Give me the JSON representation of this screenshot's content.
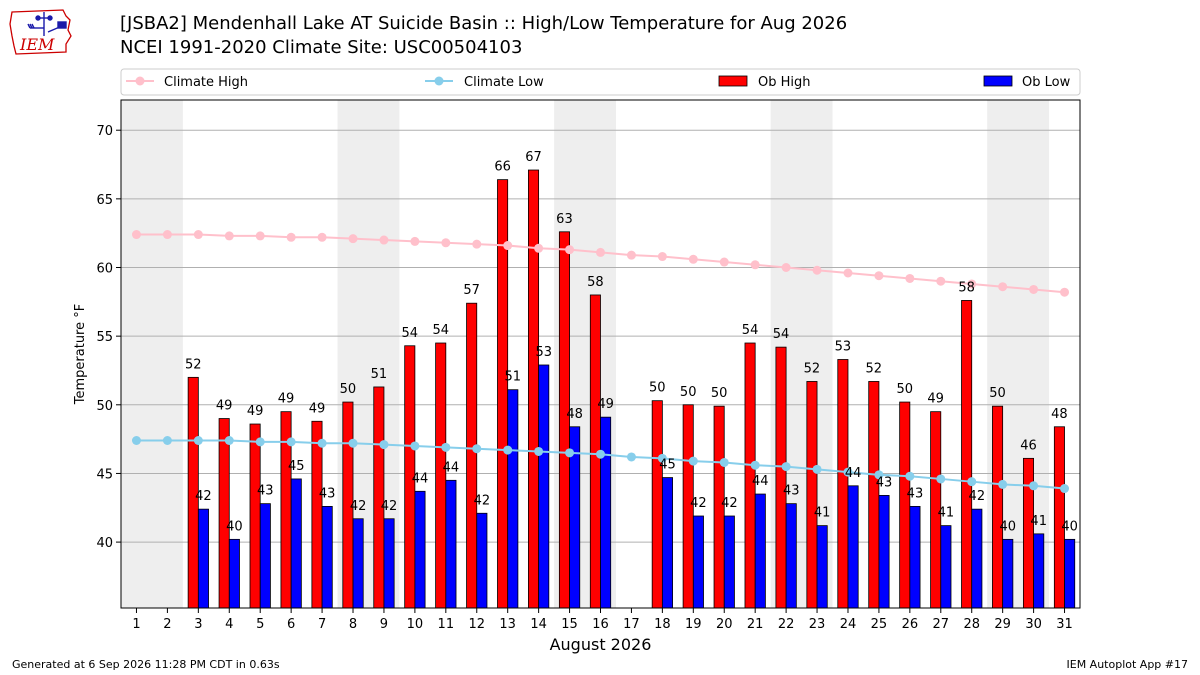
{
  "header": {
    "title": "[JSBA2] Mendenhall Lake  AT Suicide Basin :: High/Low Temperature for Aug 2026",
    "subtitle": "NCEI 1991-2020 Climate Site: USC00504103",
    "logo_text": "IEM"
  },
  "footer": {
    "left": "Generated at 6 Sep 2026 11:28 PM CDT in 0.63s",
    "right": "IEM Autoplot App #17"
  },
  "colors": {
    "climate_high": "#ffc0cb",
    "climate_low": "#87ceeb",
    "ob_high": "#ff0000",
    "ob_low": "#0000ff",
    "weekend_band": "#eeeeee",
    "grid": "#b0b0b0",
    "logo": "#cc0000"
  },
  "chart_data": {
    "type": "bar",
    "xlabel": "August 2026",
    "ylabel": "Temperature °F",
    "ylim": [
      35.2,
      72.2
    ],
    "xlim": [
      0.5,
      31.5
    ],
    "yticks": [
      40,
      45,
      50,
      55,
      60,
      65,
      70
    ],
    "x": [
      1,
      2,
      3,
      4,
      5,
      6,
      7,
      8,
      9,
      10,
      11,
      12,
      13,
      14,
      15,
      16,
      17,
      18,
      19,
      20,
      21,
      22,
      23,
      24,
      25,
      26,
      27,
      28,
      29,
      30,
      31
    ],
    "weekend_bands": [
      [
        0.5,
        2.5
      ],
      [
        7.5,
        9.5
      ],
      [
        14.5,
        16.5
      ],
      [
        21.5,
        23.5
      ],
      [
        28.5,
        30.5
      ]
    ],
    "legend_position": "top",
    "grid": "horizontal",
    "series": [
      {
        "name": "Climate High",
        "kind": "line",
        "values": [
          62.4,
          62.4,
          62.4,
          62.3,
          62.3,
          62.2,
          62.2,
          62.1,
          62.0,
          61.9,
          61.8,
          61.7,
          61.6,
          61.4,
          61.3,
          61.1,
          60.9,
          60.8,
          60.6,
          60.4,
          60.2,
          60.0,
          59.8,
          59.6,
          59.4,
          59.2,
          59.0,
          58.8,
          58.6,
          58.4,
          58.2
        ]
      },
      {
        "name": "Climate Low",
        "kind": "line",
        "values": [
          47.4,
          47.4,
          47.4,
          47.4,
          47.3,
          47.3,
          47.2,
          47.2,
          47.1,
          47.0,
          46.9,
          46.8,
          46.7,
          46.6,
          46.5,
          46.4,
          46.2,
          46.1,
          45.9,
          45.8,
          45.6,
          45.5,
          45.3,
          45.1,
          44.9,
          44.8,
          44.6,
          44.4,
          44.2,
          44.1,
          43.9
        ]
      },
      {
        "name": "Ob High",
        "kind": "bar",
        "values": [
          null,
          null,
          52.0,
          49.0,
          48.6,
          49.5,
          48.8,
          50.2,
          51.3,
          54.3,
          54.5,
          57.4,
          66.4,
          67.1,
          62.6,
          58.0,
          null,
          50.3,
          50.0,
          49.9,
          54.5,
          54.2,
          51.7,
          53.3,
          51.7,
          50.2,
          49.5,
          57.6,
          49.9,
          46.1,
          48.4
        ],
        "labels": [
          null,
          null,
          "52",
          "49",
          "49",
          "49",
          "49",
          "50",
          "51",
          "54",
          "54",
          "57",
          "66",
          "67",
          "63",
          "58",
          null,
          "50",
          "50",
          "50",
          "54",
          "54",
          "52",
          "53",
          "52",
          "50",
          "49",
          "58",
          "50",
          "46",
          "48"
        ]
      },
      {
        "name": "Ob Low",
        "kind": "bar",
        "values": [
          null,
          null,
          42.4,
          40.2,
          42.8,
          44.6,
          42.6,
          41.7,
          41.7,
          43.7,
          44.5,
          42.1,
          51.1,
          52.9,
          48.4,
          49.1,
          null,
          44.7,
          41.9,
          41.9,
          43.5,
          42.8,
          41.2,
          44.1,
          43.4,
          42.6,
          41.2,
          42.4,
          40.2,
          40.6,
          40.2
        ],
        "labels": [
          null,
          null,
          "42",
          "40",
          "43",
          "45",
          "43",
          "42",
          "42",
          "44",
          "44",
          "42",
          "51",
          "53",
          "48",
          "49",
          null,
          "45",
          "42",
          "42",
          "44",
          "43",
          "41",
          "44",
          "43",
          "43",
          "41",
          "42",
          "40",
          "41",
          "40"
        ]
      }
    ]
  }
}
